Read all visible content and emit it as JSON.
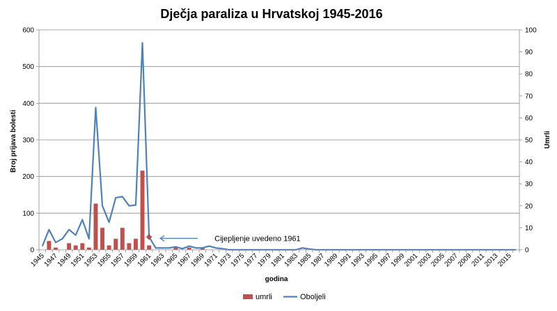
{
  "chart_data": {
    "type": "bar+line",
    "title": "Dječja paraliza u Hrvatskoj 1945-2016",
    "xlabel": "godina",
    "ylabel": "Broj prijava bolesti",
    "y2label": "Umrli",
    "ylim": [
      0,
      600
    ],
    "y2lim": [
      0,
      100
    ],
    "yticks": [
      "0",
      "100",
      "200",
      "300",
      "400",
      "500",
      "600"
    ],
    "y2ticks": [
      "0",
      "10",
      "20",
      "30",
      "40",
      "50",
      "60",
      "70",
      "80",
      "90",
      "100"
    ],
    "xticks": [
      "1945",
      "1947",
      "1949",
      "1951",
      "1953",
      "1955",
      "1957",
      "1959",
      "1961",
      "1963",
      "1965",
      "1967",
      "1969",
      "1971",
      "1973",
      "1975",
      "1977",
      "1979",
      "1981",
      "1983",
      "1985",
      "1987",
      "1989",
      "1991",
      "1993",
      "1995",
      "1997",
      "1999",
      "2001",
      "2003",
      "2005",
      "2007",
      "2009",
      "2011",
      "2013",
      "2015"
    ],
    "years": [
      1945,
      1946,
      1947,
      1948,
      1949,
      1950,
      1951,
      1952,
      1953,
      1954,
      1955,
      1956,
      1957,
      1958,
      1959,
      1960,
      1961,
      1962,
      1963,
      1964,
      1965,
      1966,
      1967,
      1968,
      1969,
      1970,
      1971,
      1972,
      1973,
      1974,
      1975,
      1976,
      1977,
      1978,
      1979,
      1980,
      1981,
      1982,
      1983,
      1984,
      1985,
      1986,
      1987,
      1988,
      1989,
      1990,
      1991,
      1992,
      1993,
      1994,
      1995,
      1996,
      1997,
      1998,
      1999,
      2000,
      2001,
      2002,
      2003,
      2004,
      2005,
      2006,
      2007,
      2008,
      2009,
      2010,
      2011,
      2012,
      2013,
      2014,
      2015,
      2016
    ],
    "series": [
      {
        "name": "umrli",
        "kind": "bar",
        "axis": "right",
        "color": "#c0504d",
        "values": [
          0,
          4,
          1,
          0,
          3,
          2,
          3,
          1,
          21,
          10,
          2,
          5,
          10,
          3,
          5,
          36,
          2,
          0,
          0,
          0,
          1,
          0,
          1,
          0,
          1,
          0,
          0,
          0,
          0,
          0,
          0,
          0,
          0,
          0,
          0,
          0,
          0,
          0,
          0,
          0,
          0,
          0,
          0,
          0,
          0,
          0,
          0,
          0,
          0,
          0,
          0,
          0,
          0,
          0,
          0,
          0,
          0,
          0,
          0,
          0,
          0,
          0,
          0,
          0,
          0,
          0,
          0,
          0,
          0,
          0,
          0,
          0
        ]
      },
      {
        "name": "Oboljeli",
        "kind": "line",
        "axis": "left",
        "color": "#4f81bd",
        "values": [
          10,
          55,
          20,
          30,
          55,
          40,
          82,
          30,
          388,
          120,
          75,
          142,
          145,
          120,
          122,
          565,
          35,
          5,
          5,
          5,
          8,
          3,
          10,
          5,
          5,
          10,
          5,
          3,
          0,
          0,
          0,
          0,
          0,
          0,
          0,
          0,
          0,
          0,
          0,
          5,
          2,
          0,
          0,
          0,
          0,
          0,
          0,
          0,
          0,
          0,
          0,
          0,
          0,
          0,
          0,
          0,
          0,
          0,
          0,
          0,
          0,
          0,
          0,
          0,
          0,
          0,
          0,
          0,
          0,
          0,
          0,
          0
        ]
      }
    ],
    "annotation": {
      "text": "Cijepljenje uvedeno 1961",
      "year": 1961,
      "value": 35
    },
    "legend_position": "bottom",
    "grid": true
  }
}
